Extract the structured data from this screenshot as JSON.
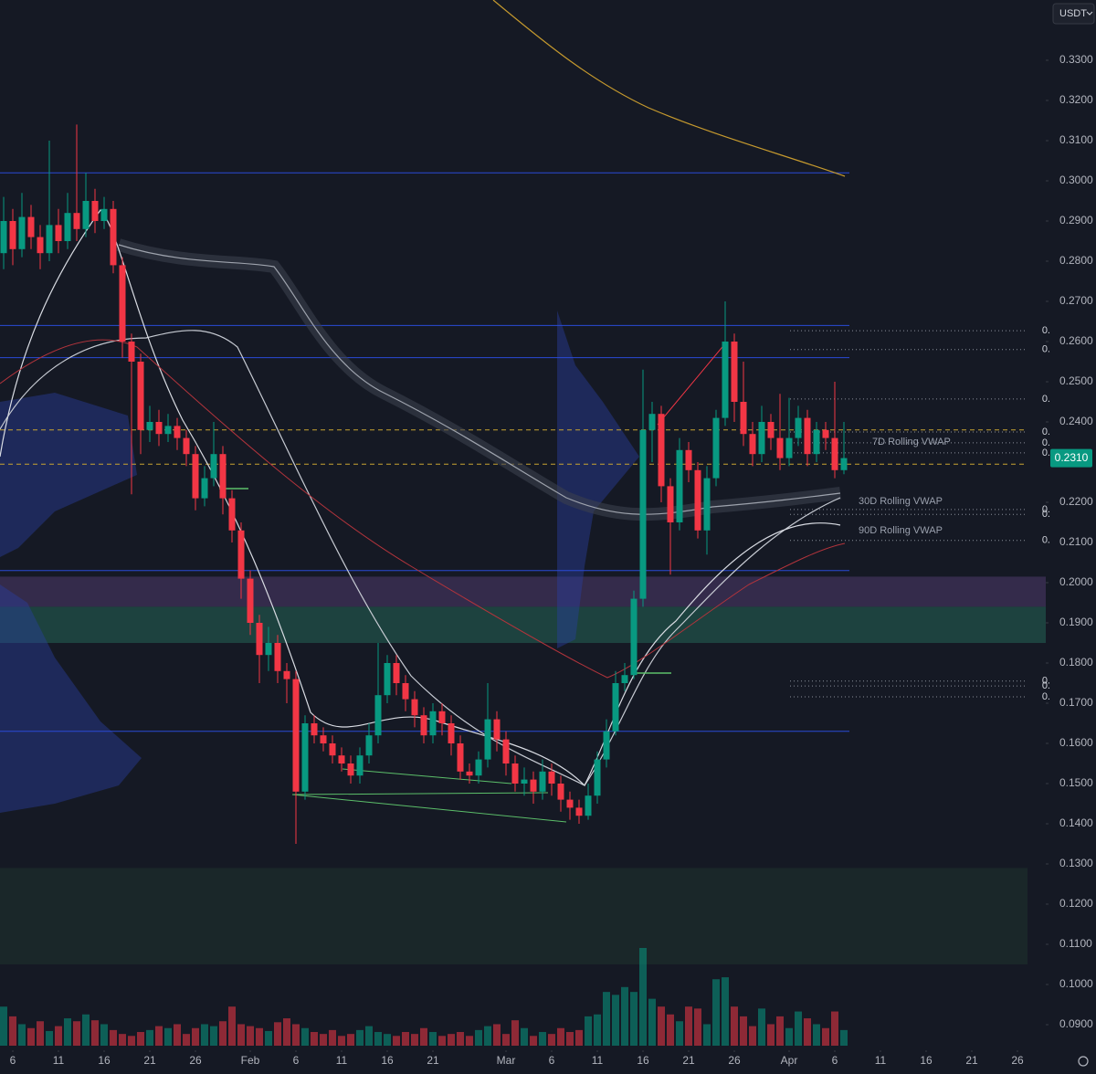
{
  "chart_data": {
    "type": "candlestick",
    "currency": "USDT",
    "price_badge": "0.2310",
    "vwap_labels": [
      "7D Rolling VWAP",
      "30D Rolling VWAP",
      "90D Rolling VWAP"
    ],
    "colors": {
      "up": "#089981",
      "down": "#f23645",
      "level": "#2a4bd7",
      "dashed": "#c8a431"
    },
    "ylim": [
      0.085,
      0.345
    ],
    "yticks": [
      {
        "value": 0.33,
        "label": "0.3300"
      },
      {
        "value": 0.32,
        "label": "0.3200"
      },
      {
        "value": 0.31,
        "label": "0.3100"
      },
      {
        "value": 0.3,
        "label": "0.3000"
      },
      {
        "value": 0.29,
        "label": "0.2900"
      },
      {
        "value": 0.28,
        "label": "0.2800"
      },
      {
        "value": 0.27,
        "label": "0.2700"
      },
      {
        "value": 0.26,
        "label": "0.2600"
      },
      {
        "value": 0.25,
        "label": "0.2500"
      },
      {
        "value": 0.24,
        "label": "0.2400"
      },
      {
        "value": 0.22,
        "label": "0.2200"
      },
      {
        "value": 0.21,
        "label": "0.2100"
      },
      {
        "value": 0.2,
        "label": "0.2000"
      },
      {
        "value": 0.19,
        "label": "0.1900"
      },
      {
        "value": 0.18,
        "label": "0.1800"
      },
      {
        "value": 0.17,
        "label": "0.1700"
      },
      {
        "value": 0.16,
        "label": "0.1600"
      },
      {
        "value": 0.15,
        "label": "0.1500"
      },
      {
        "value": 0.14,
        "label": "0.1400"
      },
      {
        "value": 0.13,
        "label": "0.1300"
      },
      {
        "value": 0.12,
        "label": "0.1200"
      },
      {
        "value": 0.11,
        "label": "0.1100"
      },
      {
        "value": 0.1,
        "label": "0.1000"
      },
      {
        "value": 0.09,
        "label": "0.0900"
      }
    ],
    "xlim": [
      -1.4,
      112.6
    ],
    "xticks": [
      {
        "value": 0,
        "label": "6"
      },
      {
        "value": 5,
        "label": "11"
      },
      {
        "value": 10,
        "label": "16"
      },
      {
        "value": 15,
        "label": "21"
      },
      {
        "value": 20,
        "label": "26"
      },
      {
        "value": 26,
        "label": "Feb"
      },
      {
        "value": 31,
        "label": "6"
      },
      {
        "value": 36,
        "label": "11"
      },
      {
        "value": 41,
        "label": "16"
      },
      {
        "value": 46,
        "label": "21"
      },
      {
        "value": 54,
        "label": "Mar"
      },
      {
        "value": 59,
        "label": "6"
      },
      {
        "value": 64,
        "label": "11"
      },
      {
        "value": 69,
        "label": "16"
      },
      {
        "value": 74,
        "label": "21"
      },
      {
        "value": 79,
        "label": "26"
      },
      {
        "value": 85,
        "label": "Apr"
      },
      {
        "value": 90,
        "label": "6"
      },
      {
        "value": 95,
        "label": "11"
      },
      {
        "value": 100,
        "label": "16"
      },
      {
        "value": 105,
        "label": "21"
      },
      {
        "value": 110,
        "label": "26"
      }
    ],
    "x": [
      -1,
      0,
      1,
      2,
      3,
      4,
      5,
      6,
      7,
      8,
      9,
      10,
      11,
      12,
      13,
      14,
      15,
      16,
      17,
      18,
      19,
      20,
      21,
      22,
      23,
      24,
      25,
      26,
      27,
      28,
      29,
      30,
      31,
      32,
      33,
      34,
      35,
      36,
      37,
      38,
      39,
      40,
      41,
      42,
      43,
      44,
      45,
      46,
      47,
      48,
      49,
      50,
      51,
      52,
      53,
      54,
      55,
      56,
      57,
      58,
      59,
      60,
      61,
      62,
      63,
      64,
      65,
      66,
      67,
      68,
      69,
      70,
      71,
      72,
      73,
      74,
      75,
      76,
      77,
      78,
      79,
      80,
      81,
      82,
      83,
      84,
      85,
      86,
      87,
      88,
      89,
      90,
      91
    ],
    "open": [
      0.282,
      0.29,
      0.283,
      0.291,
      0.286,
      0.282,
      0.289,
      0.285,
      0.292,
      0.288,
      0.295,
      0.29,
      0.293,
      0.279,
      0.26,
      0.255,
      0.238,
      0.24,
      0.237,
      0.239,
      0.236,
      0.232,
      0.221,
      0.226,
      0.232,
      0.221,
      0.213,
      0.201,
      0.19,
      0.182,
      0.185,
      0.178,
      0.176,
      0.148,
      0.165,
      0.162,
      0.16,
      0.157,
      0.155,
      0.152,
      0.157,
      0.162,
      0.172,
      0.18,
      0.175,
      0.171,
      0.167,
      0.162,
      0.168,
      0.165,
      0.16,
      0.153,
      0.152,
      0.156,
      0.166,
      0.161,
      0.155,
      0.15,
      0.151,
      0.148,
      0.153,
      0.15,
      0.146,
      0.144,
      0.142,
      0.147,
      0.156,
      0.163,
      0.175,
      0.177,
      0.196,
      0.238,
      0.242,
      0.224,
      0.215,
      0.233,
      0.228,
      0.213,
      0.226,
      0.241,
      0.26,
      0.245,
      0.237,
      0.232,
      0.24,
      0.236,
      0.231,
      0.236,
      0.241,
      0.232,
      0.238,
      0.236,
      0.228
    ],
    "high": [
      0.296,
      0.293,
      0.297,
      0.294,
      0.289,
      0.31,
      0.293,
      0.297,
      0.314,
      0.302,
      0.298,
      0.296,
      0.295,
      0.281,
      0.262,
      0.257,
      0.244,
      0.243,
      0.242,
      0.241,
      0.238,
      0.234,
      0.229,
      0.24,
      0.234,
      0.223,
      0.215,
      0.203,
      0.192,
      0.189,
      0.187,
      0.18,
      0.178,
      0.167,
      0.167,
      0.164,
      0.162,
      0.159,
      0.157,
      0.159,
      0.165,
      0.185,
      0.182,
      0.182,
      0.177,
      0.173,
      0.169,
      0.17,
      0.17,
      0.167,
      0.162,
      0.155,
      0.158,
      0.175,
      0.168,
      0.163,
      0.157,
      0.154,
      0.153,
      0.156,
      0.155,
      0.152,
      0.148,
      0.146,
      0.15,
      0.158,
      0.166,
      0.178,
      0.18,
      0.198,
      0.253,
      0.245,
      0.244,
      0.226,
      0.236,
      0.235,
      0.23,
      0.229,
      0.243,
      0.27,
      0.262,
      0.255,
      0.24,
      0.244,
      0.242,
      0.247,
      0.246,
      0.244,
      0.243,
      0.24,
      0.24,
      0.25,
      0.24
    ],
    "low": [
      0.278,
      0.279,
      0.281,
      0.283,
      0.278,
      0.28,
      0.282,
      0.283,
      0.285,
      0.286,
      0.287,
      0.288,
      0.277,
      0.256,
      0.222,
      0.232,
      0.235,
      0.234,
      0.235,
      0.233,
      0.229,
      0.218,
      0.219,
      0.224,
      0.217,
      0.21,
      0.196,
      0.187,
      0.175,
      0.178,
      0.175,
      0.17,
      0.135,
      0.146,
      0.16,
      0.158,
      0.155,
      0.153,
      0.15,
      0.15,
      0.155,
      0.16,
      0.17,
      0.172,
      0.168,
      0.164,
      0.16,
      0.16,
      0.162,
      0.157,
      0.151,
      0.15,
      0.15,
      0.154,
      0.158,
      0.152,
      0.148,
      0.147,
      0.145,
      0.146,
      0.147,
      0.143,
      0.141,
      0.14,
      0.141,
      0.145,
      0.154,
      0.162,
      0.173,
      0.176,
      0.194,
      0.23,
      0.22,
      0.202,
      0.213,
      0.225,
      0.211,
      0.207,
      0.224,
      0.239,
      0.24,
      0.234,
      0.229,
      0.23,
      0.233,
      0.228,
      0.229,
      0.234,
      0.229,
      0.23,
      0.233,
      0.226,
      0.227
    ],
    "close": [
      0.29,
      0.283,
      0.291,
      0.286,
      0.282,
      0.289,
      0.285,
      0.292,
      0.288,
      0.295,
      0.29,
      0.293,
      0.279,
      0.26,
      0.255,
      0.238,
      0.24,
      0.237,
      0.239,
      0.236,
      0.232,
      0.221,
      0.226,
      0.232,
      0.221,
      0.213,
      0.201,
      0.19,
      0.182,
      0.185,
      0.178,
      0.176,
      0.148,
      0.165,
      0.162,
      0.16,
      0.157,
      0.155,
      0.152,
      0.157,
      0.162,
      0.172,
      0.18,
      0.175,
      0.171,
      0.167,
      0.162,
      0.168,
      0.165,
      0.16,
      0.153,
      0.152,
      0.156,
      0.166,
      0.161,
      0.155,
      0.15,
      0.151,
      0.148,
      0.153,
      0.15,
      0.146,
      0.144,
      0.142,
      0.147,
      0.156,
      0.163,
      0.175,
      0.177,
      0.196,
      0.238,
      0.242,
      0.224,
      0.215,
      0.233,
      0.228,
      0.213,
      0.226,
      0.241,
      0.26,
      0.245,
      0.237,
      0.232,
      0.24,
      0.236,
      0.231,
      0.236,
      0.241,
      0.232,
      0.238,
      0.236,
      0.228,
      0.231
    ],
    "volume": [
      40,
      30,
      22,
      18,
      25,
      15,
      20,
      28,
      25,
      32,
      26,
      22,
      16,
      12,
      10,
      14,
      16,
      20,
      18,
      22,
      12,
      18,
      22,
      20,
      25,
      40,
      22,
      20,
      18,
      15,
      24,
      28,
      22,
      18,
      14,
      12,
      16,
      10,
      12,
      16,
      20,
      14,
      12,
      10,
      14,
      12,
      18,
      14,
      10,
      12,
      14,
      10,
      16,
      20,
      22,
      12,
      26,
      18,
      10,
      14,
      12,
      18,
      14,
      16,
      30,
      32,
      55,
      52,
      60,
      55,
      100,
      48,
      40,
      32,
      25,
      40,
      38,
      22,
      68,
      70,
      40,
      30,
      20,
      38,
      22,
      30,
      18,
      35,
      28,
      22,
      18,
      35,
      16
    ],
    "levels": [
      0.302,
      0.264,
      0.256,
      0.203,
      0.163
    ],
    "dashed_levels": [
      0.238,
      0.2295
    ],
    "zones": [
      [
        0.2015,
        0.194
      ],
      [
        0.194,
        0.185
      ],
      [
        0.129,
        0.105
      ]
    ],
    "zone_colors": [
      "#3a2f52",
      "#1f4a44",
      "#1b2a2a"
    ],
    "dotted_levels": [
      {
        "value": 0.2627,
        "label": "0."
      },
      {
        "value": 0.258,
        "label": "0."
      },
      {
        "value": 0.2457,
        "label": "0."
      },
      {
        "value": 0.2375,
        "label": "0."
      },
      {
        "value": 0.2348,
        "label": "0."
      },
      {
        "value": 0.2323,
        "label": "0."
      },
      {
        "value": 0.2182,
        "label": "0."
      },
      {
        "value": 0.217,
        "label": "0."
      },
      {
        "value": 0.2105,
        "label": "0."
      },
      {
        "value": 0.1755,
        "label": "0."
      },
      {
        "value": 0.1743,
        "label": "0."
      },
      {
        "value": 0.1716,
        "label": "0."
      }
    ]
  }
}
